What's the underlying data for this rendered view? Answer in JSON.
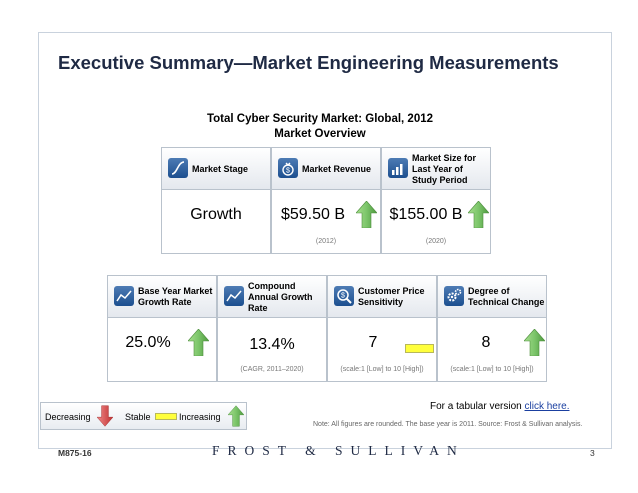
{
  "slide": {
    "title": "Executive Summary—Market Engineering Measurements",
    "subtitle_line1": "Total Cyber Security Market: Global, 2012",
    "subtitle_line2": "Market Overview"
  },
  "cards": {
    "market_stage": {
      "label": "Market Stage",
      "value": "Growth",
      "icon": "s-curve-icon"
    },
    "market_revenue": {
      "label": "Market Revenue",
      "value": "$59.50 B",
      "note": "(2012)",
      "trend": "increasing",
      "icon": "money-bag-icon"
    },
    "market_size": {
      "label": "Market Size for Last Year of Study Period",
      "value": "$155.00 B",
      "note": "(2020)",
      "trend": "increasing",
      "icon": "bar-chart-icon"
    },
    "base_year_growth": {
      "label": "Base Year Market Growth Rate",
      "value": "25.0%",
      "trend": "increasing",
      "icon": "trend-line-icon"
    },
    "cagr": {
      "label": "Compound Annual Growth Rate",
      "value": "13.4%",
      "note": "(CAGR, 2011–2020)",
      "icon": "trend-line-icon"
    },
    "price_sensitivity": {
      "label": "Customer Price Sensitivity",
      "value": "7",
      "note": "(scale:1 [Low] to 10 [High])",
      "trend": "stable",
      "icon": "magnifier-dollar-icon"
    },
    "technical_change": {
      "label": "Degree of Technical Change",
      "value": "8",
      "note": "(scale:1 [Low] to 10 [High])",
      "trend": "increasing",
      "icon": "gears-icon"
    }
  },
  "tabular": {
    "prefix": "For a tabular version ",
    "link": "click here."
  },
  "legend": {
    "decreasing": "Decreasing",
    "stable": "Stable",
    "increasing": "Increasing"
  },
  "footnote": "Note: All figures are rounded. The base year is 2011. Source: Frost & Sullivan analysis.",
  "footer": {
    "code": "M875-16",
    "brand": "FROST & SULLIVAN",
    "page": "3"
  },
  "colors": {
    "arrow_up": "#7cc56a",
    "arrow_down": "#e05050",
    "stable": "#ffff3c",
    "icon_blue": "#2a5c9e"
  }
}
